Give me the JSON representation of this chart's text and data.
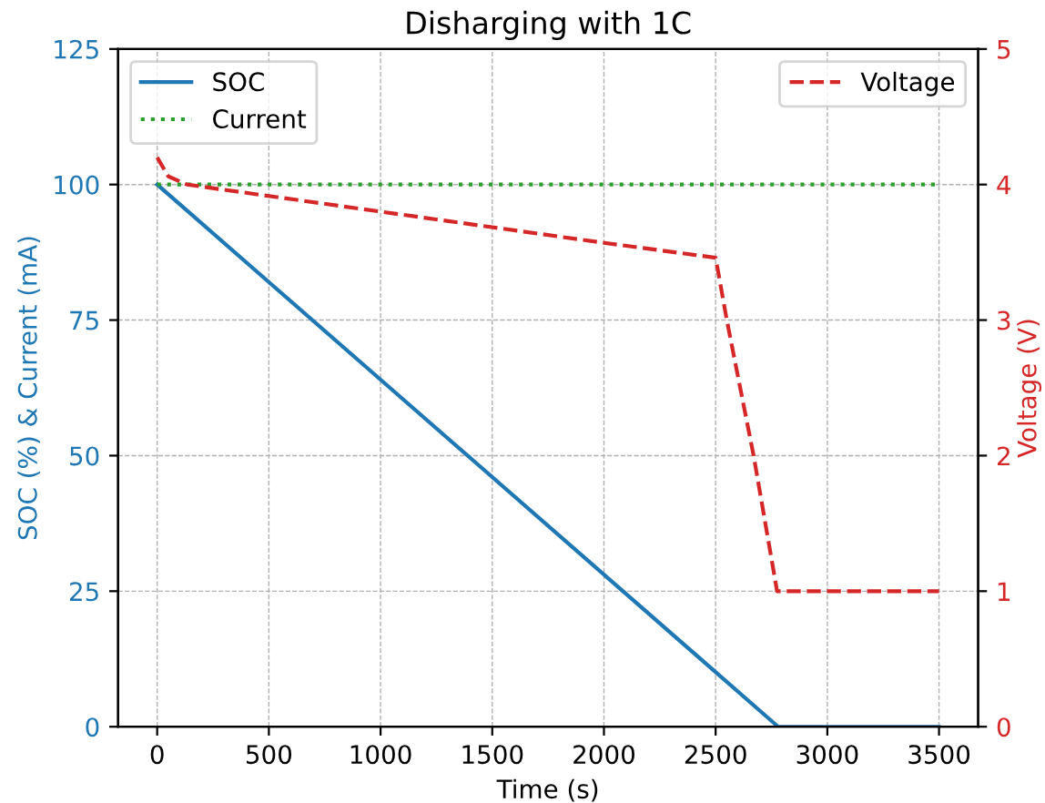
{
  "chart_data": {
    "type": "line",
    "title": "Disharging with 1C",
    "xlabel": "Time (s)",
    "ylabel": "SOC (%) & Current (mA)",
    "y2label": "Voltage (V)",
    "xlim": [
      -175,
      3675
    ],
    "xticks": [
      0,
      500,
      1000,
      1500,
      2000,
      2500,
      3000,
      3500
    ],
    "ylim": [
      0,
      125
    ],
    "yticks": [
      0,
      25,
      50,
      75,
      100,
      125
    ],
    "y2lim": [
      0,
      5
    ],
    "y2ticks": [
      0,
      1,
      2,
      3,
      4,
      5
    ],
    "grid": true,
    "legend": "top",
    "marker": "none",
    "series": [
      {
        "name": "SOC",
        "color": "#1f77b4",
        "line_style": "solid",
        "x": [
          0,
          2780,
          3500
        ],
        "values": [
          100,
          0,
          0
        ]
      },
      {
        "name": "Current",
        "color": "#2ca02c",
        "line_style": "dotted",
        "x": [
          0,
          3500
        ],
        "values": [
          100,
          100
        ]
      },
      {
        "name": "Voltage",
        "color": "#d62728",
        "line_style": "dashed",
        "axis": "y2",
        "x": [
          0,
          50,
          133,
          1000,
          2000,
          2500,
          2550,
          2670,
          2775,
          3500
        ],
        "values": [
          4.2,
          4.06,
          4.0,
          3.8,
          3.57,
          3.46,
          3.0,
          2.0,
          1.0,
          1.0
        ]
      }
    ]
  }
}
